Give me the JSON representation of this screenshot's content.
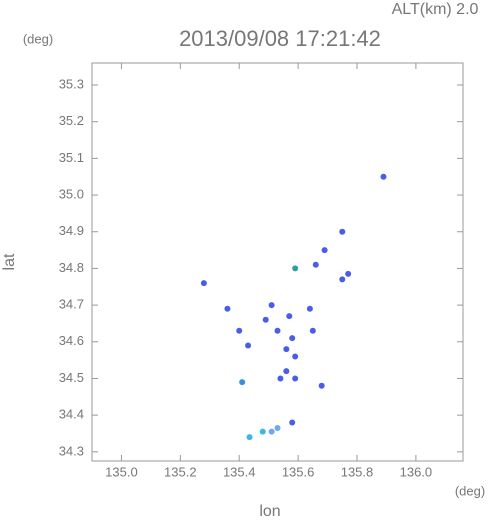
{
  "chart_data": {
    "type": "scatter",
    "annotation": "ALT(km) 2.0",
    "title": "2013/09/08 17:21:42",
    "y_unit": "(deg)",
    "x_unit": "(deg)",
    "xlabel": "lon",
    "ylabel": "lat",
    "xlim": [
      134.9,
      136.16
    ],
    "ylim": [
      34.275,
      35.36
    ],
    "xticks": [
      {
        "value": 135,
        "label": "135.0"
      },
      135.2,
      135.4,
      135.6,
      135.8,
      {
        "value": 136,
        "label": "136.0"
      }
    ],
    "yticks": [
      34.3,
      34.4,
      34.5,
      34.6,
      34.7,
      34.8,
      34.9,
      {
        "value": 35,
        "label": "35.0"
      },
      35.1,
      35.2,
      35.3
    ],
    "x": [
      135.89,
      135.75,
      135.69,
      135.77,
      135.75,
      135.66,
      135.59,
      135.28,
      135.36,
      135.4,
      135.43,
      135.51,
      135.57,
      135.64,
      135.49,
      135.53,
      135.58,
      135.65,
      135.56,
      135.59,
      135.56,
      135.59,
      135.54,
      135.41,
      135.68,
      135.58,
      135.53,
      135.48,
      135.435,
      135.51
    ],
    "values": [
      35.05,
      34.9,
      34.85,
      34.785,
      34.77,
      34.81,
      34.8,
      34.76,
      34.69,
      34.63,
      34.59,
      34.7,
      34.67,
      34.69,
      34.66,
      34.63,
      34.61,
      34.63,
      34.58,
      34.56,
      34.52,
      34.5,
      34.5,
      34.49,
      34.48,
      34.38,
      34.365,
      34.355,
      34.34,
      34.355
    ],
    "colors": [
      "#4a5de8",
      "#4a5de8",
      "#4a5de8",
      "#4a5de8",
      "#4a5de8",
      "#4a5de8",
      "#2aa0a0",
      "#4a5de8",
      "#4a5de8",
      "#4a5de8",
      "#4a5de8",
      "#4a5de8",
      "#4a5de8",
      "#4a5de8",
      "#4a5de8",
      "#4a5de8",
      "#4a5de8",
      "#4a5de8",
      "#4a5de8",
      "#4a5de8",
      "#4a5de8",
      "#4a5de8",
      "#4a5de8",
      "#3a8ee0",
      "#4a5de8",
      "#4a5de8",
      "#6fa8f0",
      "#39b8e8",
      "#39b8e8",
      "#6fa8f0"
    ]
  }
}
